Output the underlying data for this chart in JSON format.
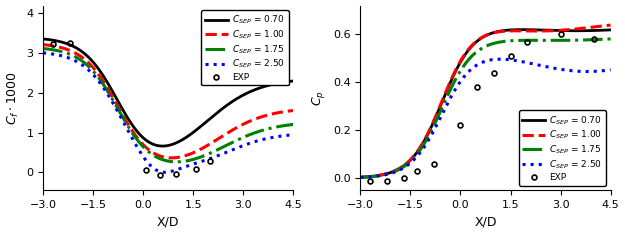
{
  "left_ylabel": "C_f \\cdot 1000",
  "left_ylim": [
    -0.45,
    4.2
  ],
  "left_yticks": [
    0,
    1,
    2,
    3,
    4
  ],
  "right_ylabel": "C_p",
  "right_ylim": [
    -0.05,
    0.72
  ],
  "right_yticks": [
    0.0,
    0.2,
    0.4,
    0.6
  ],
  "xlabel": "X/D",
  "xlim": [
    -3,
    4.5
  ],
  "xticks": [
    -3,
    -1.5,
    0,
    1.5,
    3,
    4.5
  ],
  "colors": [
    "black",
    "red",
    "green",
    "blue"
  ],
  "linestyles": [
    "-",
    "--",
    "-.",
    ":"
  ],
  "linewidths": [
    2.0,
    2.2,
    2.2,
    2.2
  ],
  "labels": [
    "C_SEP = 0.70",
    "C_SEP = 1.00",
    "C_SEP = 1.75",
    "C_SEP = 2.50"
  ],
  "exp_left_x": [
    -2.7,
    -2.2,
    0.1,
    0.5,
    1.0,
    1.6,
    2.0
  ],
  "exp_left_y": [
    3.22,
    3.25,
    0.06,
    -0.06,
    -0.05,
    0.08,
    0.28
  ],
  "exp_right_x": [
    -2.7,
    -2.2,
    -1.7,
    -1.3,
    -0.8,
    0.0,
    0.5,
    1.0,
    1.5,
    2.0,
    3.0,
    4.0
  ],
  "exp_right_y": [
    -0.01,
    -0.01,
    0.0,
    0.03,
    0.06,
    0.22,
    0.38,
    0.44,
    0.51,
    0.57,
    0.6,
    0.58
  ]
}
